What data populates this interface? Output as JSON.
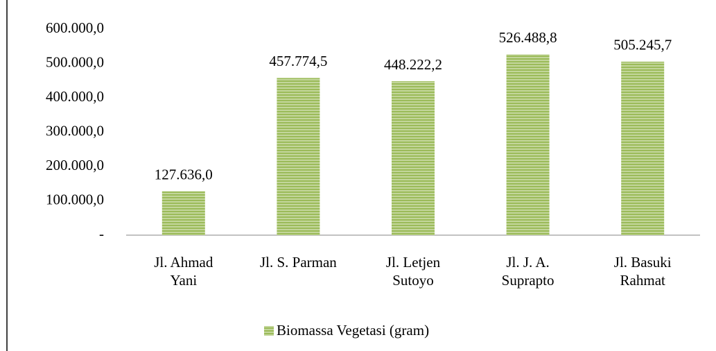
{
  "chart_data": {
    "type": "bar",
    "categories": [
      "Jl. Ahmad\nYani",
      "Jl. S. Parman",
      "Jl. Letjen\nSutoyo",
      "Jl. J. A.\nSuprapto",
      "Jl. Basuki\nRahmat"
    ],
    "series": [
      {
        "name": "Biomassa Vegetasi (gram)",
        "color": "#9bbb59",
        "values": [
          127636.0,
          457774.5,
          448222.2,
          526488.8,
          505245.7
        ],
        "value_labels": [
          "127.636,0",
          "457.774,5",
          "448.222,2",
          "526.488,8",
          "505.245,7"
        ]
      }
    ],
    "ylim": [
      0,
      600000
    ],
    "yticks": [
      {
        "value": 0,
        "label": "-"
      },
      {
        "value": 100000,
        "label": "100.000,0"
      },
      {
        "value": 200000,
        "label": "200.000,0"
      },
      {
        "value": 300000,
        "label": "300.000,0"
      },
      {
        "value": 400000,
        "label": "400.000,0"
      },
      {
        "value": 500000,
        "label": "500.000,0"
      },
      {
        "value": 600000,
        "label": "600.000,0"
      }
    ],
    "grid": false,
    "legend": "bottom"
  }
}
